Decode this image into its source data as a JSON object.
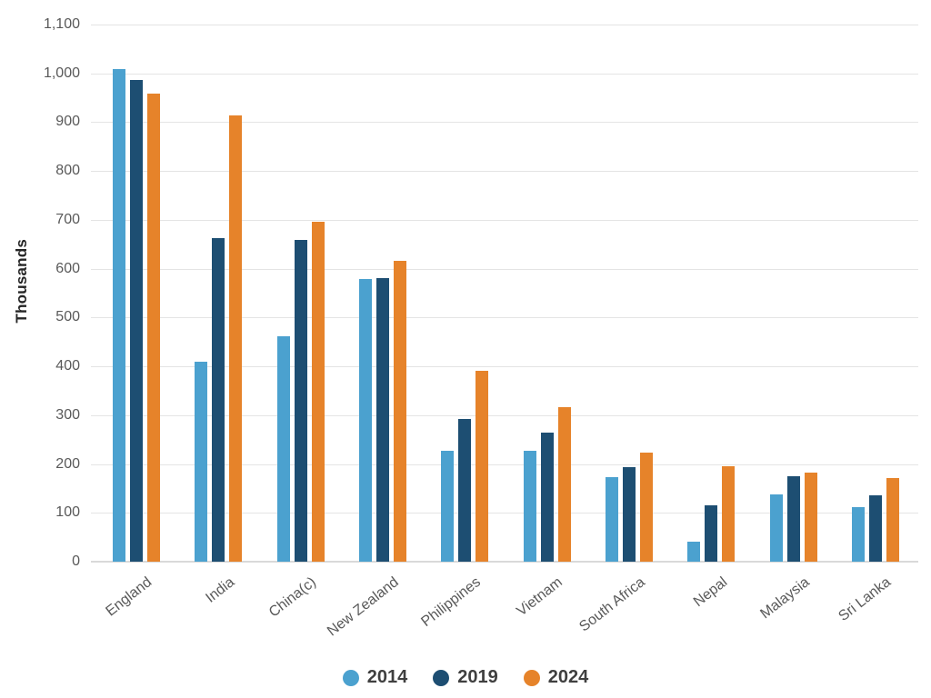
{
  "chart_data": {
    "type": "bar",
    "title": "",
    "xlabel": "",
    "ylabel": "Thousands",
    "categories": [
      "England",
      "India",
      "China(c)",
      "New Zealand",
      "Philippines",
      "Vietnam",
      "South Africa",
      "Nepal",
      "Malaysia",
      "Sri Lanka"
    ],
    "series": [
      {
        "name": "2014",
        "color": "#4ba1cf",
        "values": [
          1008,
          409,
          462,
          579,
          228,
          228,
          173,
          41,
          137,
          112
        ]
      },
      {
        "name": "2019",
        "color": "#1d4e72",
        "values": [
          987,
          663,
          658,
          580,
          293,
          265,
          194,
          116,
          175,
          135
        ]
      },
      {
        "name": "2024",
        "color": "#e6832a",
        "values": [
          959,
          913,
          697,
          616,
          391,
          317,
          223,
          196,
          183,
          171
        ]
      }
    ],
    "ylim": [
      0,
      1100
    ],
    "ytick_step": 100,
    "ytick_labels": [
      "0",
      "100",
      "200",
      "300",
      "400",
      "500",
      "600",
      "700",
      "800",
      "900",
      "1,000",
      "1,100"
    ],
    "grid": true,
    "legend_position": "bottom"
  },
  "colors": {
    "gridline": "#e4e4e4",
    "baseline": "#d9d9d9",
    "tick_text": "#595959",
    "axis_title_text": "#262626",
    "legend_text": "#3f3f3f",
    "background": "#ffffff"
  }
}
